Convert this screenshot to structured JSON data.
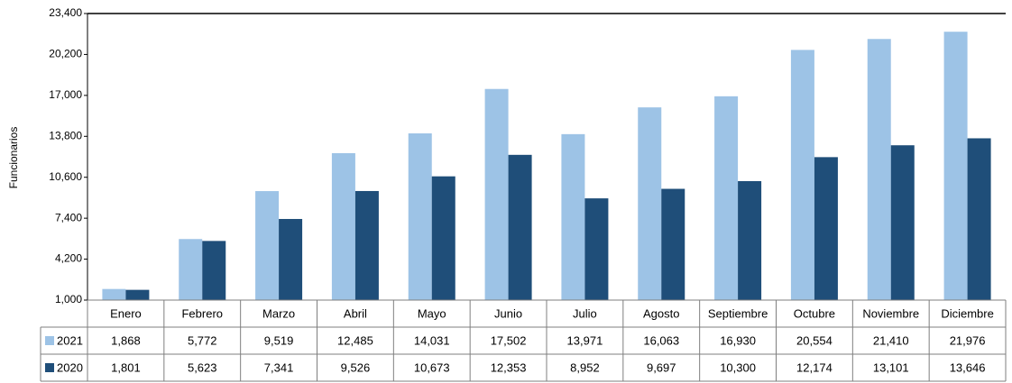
{
  "chart_data": {
    "type": "bar",
    "y_label": "Funcionarios",
    "categories": [
      "Enero",
      "Febrero",
      "Marzo",
      "Abril",
      "Mayo",
      "Junio",
      "Julio",
      "Agosto",
      "Septiembre",
      "Octubre",
      "Noviembre",
      "Diciembre"
    ],
    "series": [
      {
        "name": "2021",
        "color": "#9dc3e6",
        "values": [
          1868,
          5772,
          9519,
          12485,
          14031,
          17502,
          13971,
          16063,
          16930,
          20554,
          21410,
          21976
        ],
        "value_labels": [
          "1,868",
          "5,772",
          "9,519",
          "12,485",
          "14,031",
          "17,502",
          "13,971",
          "16,063",
          "16,930",
          "20,554",
          "21,410",
          "21,976"
        ]
      },
      {
        "name": "2020",
        "color": "#1f4e79",
        "values": [
          1801,
          5623,
          7341,
          9526,
          10673,
          12353,
          8952,
          9697,
          10300,
          12174,
          13101,
          13646
        ],
        "value_labels": [
          "1,801",
          "5,623",
          "7,341",
          "9,526",
          "10,673",
          "12,353",
          "8,952",
          "9,697",
          "10,300",
          "12,174",
          "13,101",
          "13,646"
        ]
      }
    ],
    "ylim": [
      1000,
      23400
    ],
    "yticks": [
      {
        "value": 1000,
        "label": "1,000"
      },
      {
        "value": 4200,
        "label": "4,200"
      },
      {
        "value": 7400,
        "label": "7,400"
      },
      {
        "value": 10600,
        "label": "10,600"
      },
      {
        "value": 13800,
        "label": "13,800"
      },
      {
        "value": 17000,
        "label": "17,000"
      },
      {
        "value": 20200,
        "label": "20,200"
      },
      {
        "value": 23400,
        "label": "23,400"
      }
    ],
    "grid": false
  }
}
